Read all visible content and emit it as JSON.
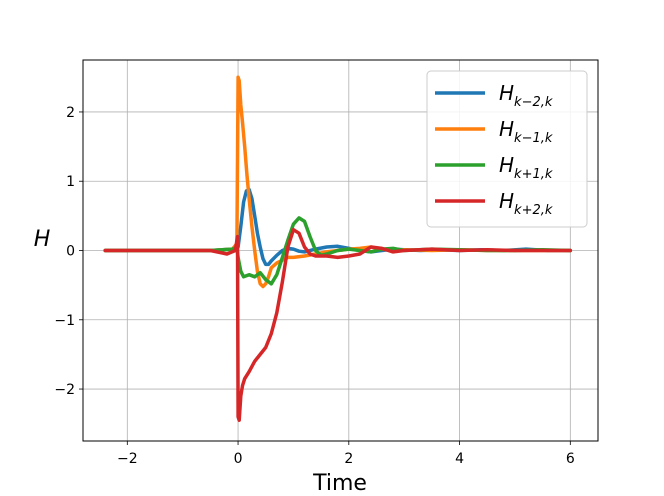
{
  "chart_data": {
    "type": "line",
    "xlabel": "Time",
    "ylabel": "H",
    "xlim": [
      -2.8,
      6.5
    ],
    "ylim": [
      -2.75,
      2.75
    ],
    "xticks": [
      -2,
      0,
      2,
      4,
      6
    ],
    "yticks": [
      -2,
      -1,
      0,
      1,
      2
    ],
    "xtick_labels": [
      "−2",
      "0",
      "2",
      "4",
      "6"
    ],
    "ytick_labels": [
      "−2",
      "−1",
      "0",
      "1",
      "2"
    ],
    "grid": true,
    "legend_position": "top-right",
    "series": [
      {
        "name": "H",
        "subscript": "k−2,k",
        "color": "#1f77b4",
        "x": [
          -2.4,
          -0.5,
          -0.1,
          0.0,
          0.05,
          0.1,
          0.15,
          0.2,
          0.25,
          0.3,
          0.35,
          0.4,
          0.45,
          0.5,
          0.55,
          0.6,
          0.7,
          0.8,
          0.9,
          1.0,
          1.1,
          1.2,
          1.4,
          1.6,
          1.8,
          2.0,
          2.2,
          2.4,
          2.6,
          2.8,
          3.0,
          3.3,
          3.6,
          4.0,
          4.4,
          4.8,
          5.2,
          5.6,
          6.0
        ],
        "y": [
          0,
          0,
          0.02,
          0.05,
          0.35,
          0.7,
          0.86,
          0.88,
          0.75,
          0.5,
          0.25,
          0.05,
          -0.12,
          -0.2,
          -0.2,
          -0.15,
          -0.07,
          0.0,
          0.03,
          0.02,
          -0.01,
          -0.02,
          0.02,
          0.05,
          0.06,
          0.03,
          0.0,
          -0.02,
          0.0,
          0.02,
          0.01,
          0.0,
          0.01,
          0.0,
          0.01,
          0.0,
          0.02,
          0.0,
          0.0
        ]
      },
      {
        "name": "H",
        "subscript": "k−1,k",
        "color": "#ff7f0e",
        "x": [
          -2.4,
          -0.5,
          -0.1,
          -0.02,
          0.0,
          0.02,
          0.05,
          0.08,
          0.12,
          0.16,
          0.2,
          0.25,
          0.3,
          0.35,
          0.4,
          0.45,
          0.5,
          0.55,
          0.6,
          0.7,
          0.8,
          0.9,
          1.0,
          1.2,
          1.4,
          1.6,
          1.8,
          2.0,
          2.2,
          2.4,
          2.6,
          2.8,
          3.0,
          3.5,
          4.0,
          4.5,
          5.0,
          5.5,
          6.0
        ],
        "y": [
          0,
          0,
          0.02,
          0.1,
          2.5,
          2.45,
          2.1,
          1.85,
          1.5,
          1.1,
          0.75,
          0.35,
          0.0,
          -0.3,
          -0.48,
          -0.52,
          -0.48,
          -0.38,
          -0.25,
          -0.18,
          -0.14,
          -0.1,
          -0.1,
          -0.08,
          -0.05,
          -0.02,
          0.0,
          0.02,
          0.03,
          0.05,
          0.02,
          0.0,
          0.01,
          0.0,
          0.01,
          0.0,
          0.0,
          0.0,
          0.0
        ]
      },
      {
        "name": "H",
        "subscript": "k+1,k",
        "color": "#2ca02c",
        "x": [
          -2.4,
          -0.5,
          -0.1,
          -0.02,
          0.0,
          0.05,
          0.1,
          0.2,
          0.3,
          0.4,
          0.5,
          0.6,
          0.7,
          0.8,
          0.9,
          1.0,
          1.1,
          1.2,
          1.3,
          1.4,
          1.5,
          1.6,
          1.8,
          2.0,
          2.2,
          2.4,
          2.6,
          2.8,
          3.0,
          3.5,
          4.0,
          4.5,
          5.0,
          5.5,
          6.0
        ],
        "y": [
          0,
          0,
          0.02,
          0.05,
          -0.1,
          -0.3,
          -0.38,
          -0.35,
          -0.38,
          -0.32,
          -0.42,
          -0.48,
          -0.35,
          -0.1,
          0.15,
          0.38,
          0.47,
          0.42,
          0.2,
          0.0,
          -0.07,
          -0.05,
          0.0,
          0.02,
          0.0,
          -0.02,
          0.02,
          0.03,
          0.0,
          0.02,
          0.01,
          0.0,
          0.0,
          0.01,
          0.0
        ]
      },
      {
        "name": "H",
        "subscript": "k+2,k",
        "color": "#d62728",
        "x": [
          -2.4,
          -0.5,
          -0.2,
          -0.05,
          -0.01,
          0.0,
          0.02,
          0.05,
          0.08,
          0.12,
          0.2,
          0.3,
          0.4,
          0.5,
          0.6,
          0.7,
          0.8,
          0.9,
          1.0,
          1.1,
          1.2,
          1.3,
          1.4,
          1.6,
          1.8,
          2.0,
          2.2,
          2.4,
          2.6,
          2.8,
          3.0,
          3.5,
          4.0,
          4.5,
          5.0,
          5.5,
          6.0
        ],
        "y": [
          0,
          0,
          -0.05,
          0.0,
          0.2,
          -2.4,
          -2.45,
          -2.1,
          -1.95,
          -1.85,
          -1.75,
          -1.6,
          -1.5,
          -1.4,
          -1.2,
          -0.9,
          -0.45,
          0.05,
          0.3,
          0.25,
          0.05,
          -0.05,
          -0.08,
          -0.08,
          -0.1,
          -0.08,
          -0.05,
          0.05,
          0.03,
          -0.02,
          0.0,
          0.02,
          0.0,
          0.01,
          0.0,
          0.0,
          0.0
        ]
      }
    ]
  }
}
